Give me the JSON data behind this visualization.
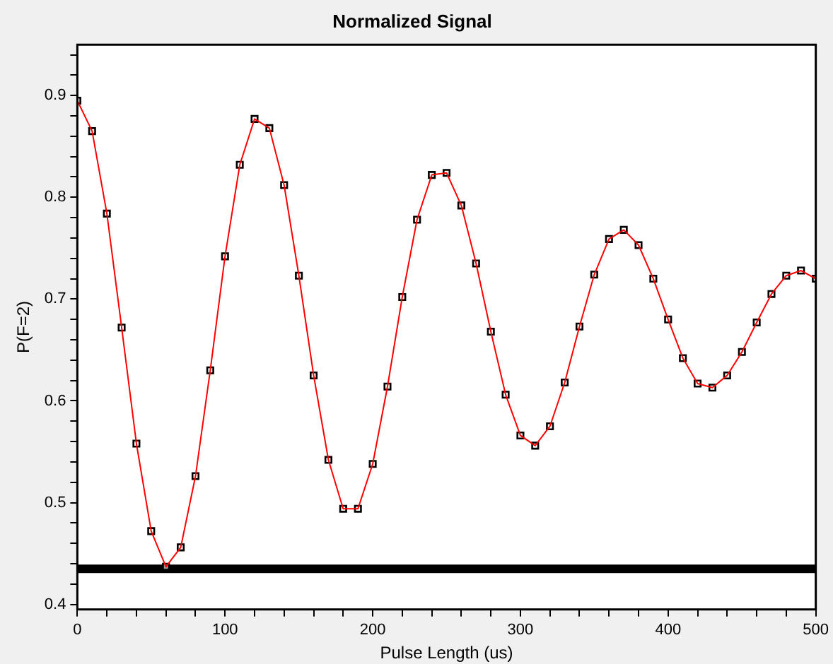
{
  "chart_data": {
    "type": "scatter",
    "title": "Normalized Signal",
    "xlabel": "Pulse Length (us)",
    "ylabel": "P(F=2)",
    "xlim": [
      0,
      500
    ],
    "ylim": [
      0.395,
      0.95
    ],
    "xticks": [
      0,
      {
        "value": 20,
        "label": null
      },
      {
        "value": 40,
        "label": null
      },
      {
        "value": 60,
        "label": null
      },
      {
        "value": 80,
        "label": null
      },
      100,
      {
        "value": 120,
        "label": null
      },
      {
        "value": 140,
        "label": null
      },
      {
        "value": 160,
        "label": null
      },
      {
        "value": 180,
        "label": null
      },
      200,
      {
        "value": 220,
        "label": null
      },
      {
        "value": 240,
        "label": null
      },
      {
        "value": 260,
        "label": null
      },
      {
        "value": 280,
        "label": null
      },
      300,
      {
        "value": 320,
        "label": null
      },
      {
        "value": 340,
        "label": null
      },
      {
        "value": 360,
        "label": null
      },
      {
        "value": 380,
        "label": null
      },
      400,
      {
        "value": 420,
        "label": null
      },
      {
        "value": 440,
        "label": null
      },
      {
        "value": 460,
        "label": null
      },
      {
        "value": 480,
        "label": null
      },
      500
    ],
    "yticks": [
      0.4,
      {
        "value": 0.42,
        "label": null
      },
      {
        "value": 0.44,
        "label": null
      },
      {
        "value": 0.46,
        "label": null
      },
      {
        "value": 0.48,
        "label": null
      },
      0.5,
      {
        "value": 0.52,
        "label": null
      },
      {
        "value": 0.54,
        "label": null
      },
      {
        "value": 0.56,
        "label": null
      },
      {
        "value": 0.58,
        "label": null
      },
      0.6,
      {
        "value": 0.62,
        "label": null
      },
      {
        "value": 0.64,
        "label": null
      },
      {
        "value": 0.66,
        "label": null
      },
      {
        "value": 0.68,
        "label": null
      },
      0.7,
      {
        "value": 0.72,
        "label": null
      },
      {
        "value": 0.74,
        "label": null
      },
      {
        "value": 0.76,
        "label": null
      },
      {
        "value": 0.78,
        "label": null
      },
      0.8,
      {
        "value": 0.82,
        "label": null
      },
      {
        "value": 0.84,
        "label": null
      },
      {
        "value": 0.86,
        "label": null
      },
      {
        "value": 0.88,
        "label": null
      },
      0.9,
      {
        "value": 0.92,
        "label": null
      },
      {
        "value": 0.94,
        "label": null
      }
    ],
    "x": [
      0,
      10,
      20,
      30,
      40,
      50,
      60,
      70,
      80,
      90,
      100,
      110,
      120,
      130,
      140,
      150,
      160,
      170,
      180,
      190,
      200,
      210,
      220,
      230,
      240,
      250,
      260,
      270,
      280,
      290,
      300,
      310,
      320,
      330,
      340,
      350,
      360,
      370,
      380,
      390,
      400,
      410,
      420,
      430,
      440,
      450,
      460,
      470,
      480,
      490,
      500
    ],
    "series": [
      {
        "type": "scatter",
        "color": "#000000",
        "marker": "square",
        "values": [
          0.895,
          0.865,
          0.784,
          0.672,
          0.558,
          0.472,
          0.437,
          0.456,
          0.526,
          0.63,
          0.742,
          0.832,
          0.877,
          0.868,
          0.812,
          0.723,
          0.625,
          0.542,
          0.494,
          0.494,
          0.538,
          0.614,
          0.702,
          0.778,
          0.822,
          0.824,
          0.792,
          0.735,
          0.668,
          0.606,
          0.566,
          0.556,
          0.575,
          0.618,
          0.673,
          0.724,
          0.759,
          0.768,
          0.753,
          0.72,
          0.68,
          0.642,
          0.617,
          0.613,
          0.625,
          0.648,
          0.677,
          0.705,
          0.723,
          0.728,
          0.72
        ]
      },
      {
        "type": "line",
        "color": "#ff0000",
        "marker": "none",
        "values": [
          0.895,
          0.865,
          0.784,
          0.672,
          0.558,
          0.472,
          0.437,
          0.456,
          0.526,
          0.63,
          0.742,
          0.832,
          0.877,
          0.868,
          0.812,
          0.723,
          0.625,
          0.542,
          0.494,
          0.494,
          0.538,
          0.614,
          0.702,
          0.778,
          0.822,
          0.824,
          0.792,
          0.735,
          0.668,
          0.606,
          0.566,
          0.556,
          0.575,
          0.618,
          0.673,
          0.724,
          0.759,
          0.768,
          0.753,
          0.72,
          0.68,
          0.642,
          0.617,
          0.613,
          0.625,
          0.648,
          0.677,
          0.705,
          0.723,
          0.728,
          0.72
        ]
      }
    ],
    "ref_lines": [
      {
        "axis": "y",
        "value": 0.435,
        "color": "#000000"
      }
    ],
    "grid": false,
    "legend": false
  }
}
